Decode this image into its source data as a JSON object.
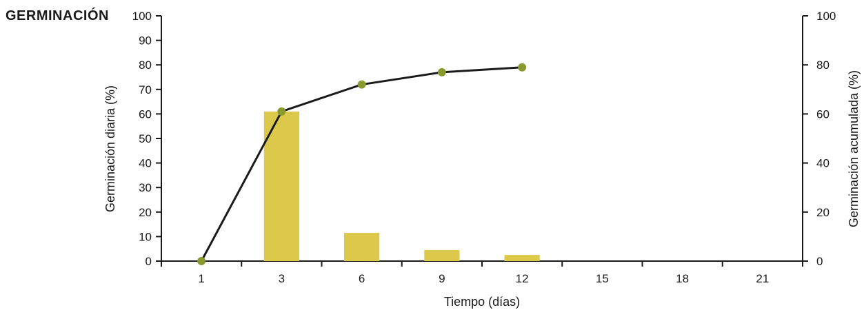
{
  "chart_data": {
    "type": "bar",
    "title": "GERMINACIÓN",
    "xlabel": "Tiempo (días)",
    "ylabel": "Germinación diaria (%)",
    "ylabel_right": "Germinación acumulada (%)",
    "categories": [
      "1",
      "3",
      "6",
      "9",
      "12",
      "15",
      "18",
      "21"
    ],
    "ylim": [
      0,
      100
    ],
    "yticks": [
      0,
      10,
      20,
      30,
      40,
      50,
      60,
      70,
      80,
      90,
      100
    ],
    "ylim_right": [
      0,
      100
    ],
    "yticks_right": [
      0,
      20,
      40,
      60,
      80,
      100
    ],
    "grid": false,
    "series": [
      {
        "type": "bar",
        "axis": "left",
        "color": "#dcc84a",
        "values": [
          0,
          61,
          11.5,
          4.5,
          2.5,
          0,
          0,
          0
        ]
      },
      {
        "type": "line",
        "axis": "right",
        "color": "#1a1a1a",
        "marker_color": "#8a9a2e",
        "x": [
          "1",
          "3",
          "6",
          "9",
          "12"
        ],
        "values": [
          0,
          61,
          72,
          77,
          79
        ]
      }
    ]
  }
}
